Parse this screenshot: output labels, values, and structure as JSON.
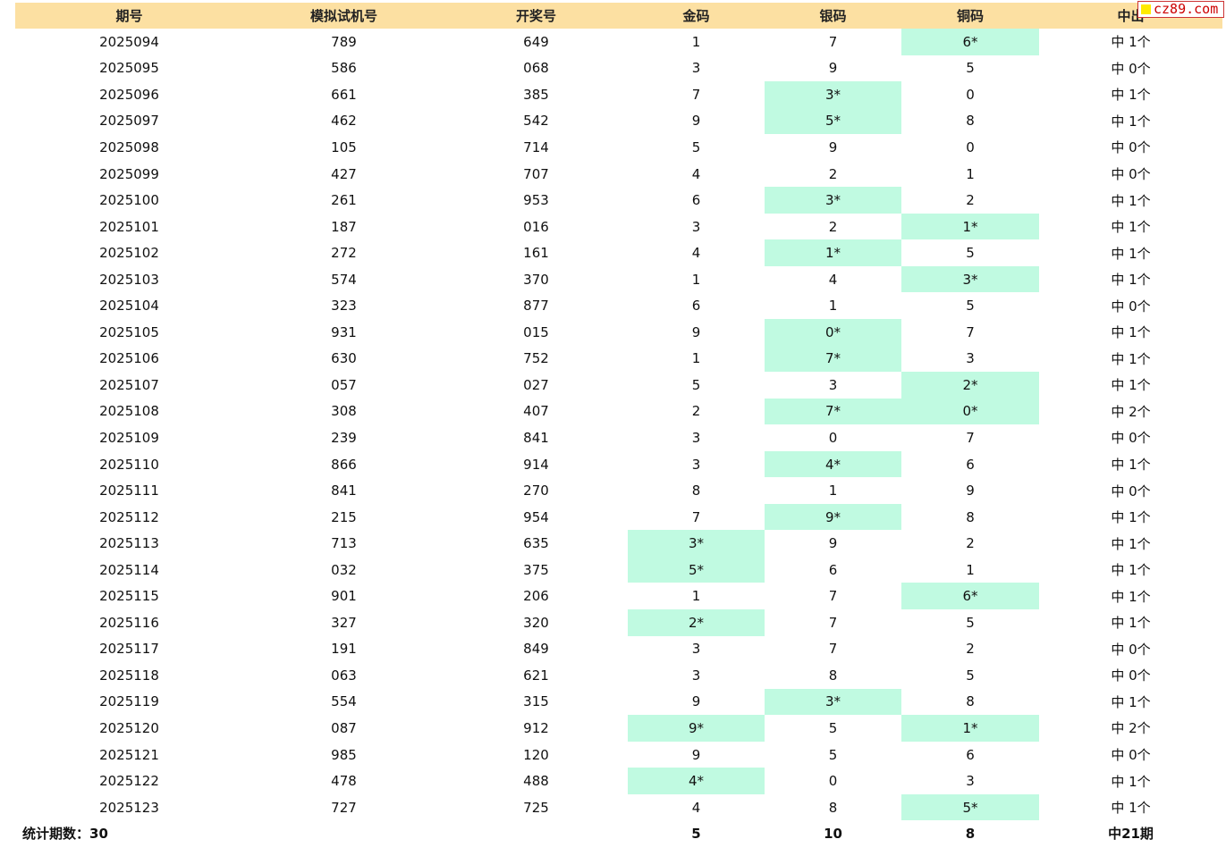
{
  "header": {
    "columns": [
      "期号",
      "模拟试机号",
      "开奖号",
      "金码",
      "银码",
      "铜码",
      "中出"
    ]
  },
  "rows": [
    {
      "period": "2025094",
      "sim": "789",
      "draw": "649",
      "gold": "1",
      "silver": "7",
      "bronze": "6*",
      "hits": "中 1个"
    },
    {
      "period": "2025095",
      "sim": "586",
      "draw": "068",
      "gold": "3",
      "silver": "9",
      "bronze": "5",
      "hits": "中 0个"
    },
    {
      "period": "2025096",
      "sim": "661",
      "draw": "385",
      "gold": "7",
      "silver": "3*",
      "bronze": "0",
      "hits": "中 1个"
    },
    {
      "period": "2025097",
      "sim": "462",
      "draw": "542",
      "gold": "9",
      "silver": "5*",
      "bronze": "8",
      "hits": "中 1个"
    },
    {
      "period": "2025098",
      "sim": "105",
      "draw": "714",
      "gold": "5",
      "silver": "9",
      "bronze": "0",
      "hits": "中 0个"
    },
    {
      "period": "2025099",
      "sim": "427",
      "draw": "707",
      "gold": "4",
      "silver": "2",
      "bronze": "1",
      "hits": "中 0个"
    },
    {
      "period": "2025100",
      "sim": "261",
      "draw": "953",
      "gold": "6",
      "silver": "3*",
      "bronze": "2",
      "hits": "中 1个"
    },
    {
      "period": "2025101",
      "sim": "187",
      "draw": "016",
      "gold": "3",
      "silver": "2",
      "bronze": "1*",
      "hits": "中 1个"
    },
    {
      "period": "2025102",
      "sim": "272",
      "draw": "161",
      "gold": "4",
      "silver": "1*",
      "bronze": "5",
      "hits": "中 1个"
    },
    {
      "period": "2025103",
      "sim": "574",
      "draw": "370",
      "gold": "1",
      "silver": "4",
      "bronze": "3*",
      "hits": "中 1个"
    },
    {
      "period": "2025104",
      "sim": "323",
      "draw": "877",
      "gold": "6",
      "silver": "1",
      "bronze": "5",
      "hits": "中 0个"
    },
    {
      "period": "2025105",
      "sim": "931",
      "draw": "015",
      "gold": "9",
      "silver": "0*",
      "bronze": "7",
      "hits": "中 1个"
    },
    {
      "period": "2025106",
      "sim": "630",
      "draw": "752",
      "gold": "1",
      "silver": "7*",
      "bronze": "3",
      "hits": "中 1个"
    },
    {
      "period": "2025107",
      "sim": "057",
      "draw": "027",
      "gold": "5",
      "silver": "3",
      "bronze": "2*",
      "hits": "中 1个"
    },
    {
      "period": "2025108",
      "sim": "308",
      "draw": "407",
      "gold": "2",
      "silver": "7*",
      "bronze": "0*",
      "hits": "中 2个"
    },
    {
      "period": "2025109",
      "sim": "239",
      "draw": "841",
      "gold": "3",
      "silver": "0",
      "bronze": "7",
      "hits": "中 0个"
    },
    {
      "period": "2025110",
      "sim": "866",
      "draw": "914",
      "gold": "3",
      "silver": "4*",
      "bronze": "6",
      "hits": "中 1个"
    },
    {
      "period": "2025111",
      "sim": "841",
      "draw": "270",
      "gold": "8",
      "silver": "1",
      "bronze": "9",
      "hits": "中 0个"
    },
    {
      "period": "2025112",
      "sim": "215",
      "draw": "954",
      "gold": "7",
      "silver": "9*",
      "bronze": "8",
      "hits": "中 1个"
    },
    {
      "period": "2025113",
      "sim": "713",
      "draw": "635",
      "gold": "3*",
      "silver": "9",
      "bronze": "2",
      "hits": "中 1个"
    },
    {
      "period": "2025114",
      "sim": "032",
      "draw": "375",
      "gold": "5*",
      "silver": "6",
      "bronze": "1",
      "hits": "中 1个"
    },
    {
      "period": "2025115",
      "sim": "901",
      "draw": "206",
      "gold": "1",
      "silver": "7",
      "bronze": "6*",
      "hits": "中 1个"
    },
    {
      "period": "2025116",
      "sim": "327",
      "draw": "320",
      "gold": "2*",
      "silver": "7",
      "bronze": "5",
      "hits": "中 1个"
    },
    {
      "period": "2025117",
      "sim": "191",
      "draw": "849",
      "gold": "3",
      "silver": "7",
      "bronze": "2",
      "hits": "中 0个"
    },
    {
      "period": "2025118",
      "sim": "063",
      "draw": "621",
      "gold": "3",
      "silver": "8",
      "bronze": "5",
      "hits": "中 0个"
    },
    {
      "period": "2025119",
      "sim": "554",
      "draw": "315",
      "gold": "9",
      "silver": "3*",
      "bronze": "8",
      "hits": "中 1个"
    },
    {
      "period": "2025120",
      "sim": "087",
      "draw": "912",
      "gold": "9*",
      "silver": "5",
      "bronze": "1*",
      "hits": "中 2个"
    },
    {
      "period": "2025121",
      "sim": "985",
      "draw": "120",
      "gold": "9",
      "silver": "5",
      "bronze": "6",
      "hits": "中 0个"
    },
    {
      "period": "2025122",
      "sim": "478",
      "draw": "488",
      "gold": "4*",
      "silver": "0",
      "bronze": "3",
      "hits": "中 1个"
    },
    {
      "period": "2025123",
      "sim": "727",
      "draw": "725",
      "gold": "4",
      "silver": "8",
      "bronze": "5*",
      "hits": "中 1个"
    }
  ],
  "footer": {
    "label": "统计期数：30",
    "gold_total": "5",
    "silver_total": "10",
    "bronze_total": "8",
    "hits_total": "中21期"
  },
  "watermark": {
    "text": "cz89.com"
  },
  "colors": {
    "header_bg": "#fce0a2",
    "hit_bg": "#c0fae1",
    "watermark_text": "#cc0000",
    "watermark_box": "#ffea00"
  }
}
